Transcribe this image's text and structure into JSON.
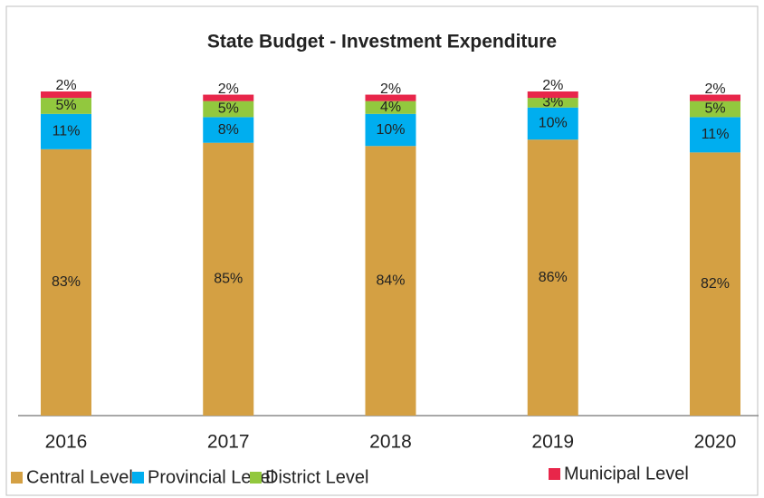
{
  "chart_data": {
    "type": "stacked_bar",
    "title": "State Budget - Investment Expenditure",
    "categories": [
      "2016",
      "2017",
      "2018",
      "2019",
      "2020"
    ],
    "series": [
      {
        "name": "Central Level",
        "color": "#D4A043",
        "values": [
          83,
          85,
          84,
          86,
          82
        ],
        "value_labels": [
          "83%",
          "85%",
          "84%",
          "86%",
          "82%"
        ]
      },
      {
        "name": "Provincial Level",
        "color": "#00AEEF",
        "values": [
          11,
          8,
          10,
          10,
          11
        ],
        "value_labels": [
          "11%",
          "8%",
          "10%",
          "10%",
          "11%"
        ]
      },
      {
        "name": "District Level",
        "color": "#92C83E",
        "values": [
          5,
          5,
          4,
          3,
          5
        ],
        "value_labels": [
          "5%",
          "5%",
          "4%",
          "3%",
          "5%"
        ]
      },
      {
        "name": "Municipal Level",
        "color": "#E8264A",
        "values": [
          2,
          2,
          2,
          2,
          2
        ],
        "value_labels": [
          "2%",
          "2%",
          "2%",
          "2%",
          "2%"
        ]
      }
    ],
    "legend": "bottom"
  }
}
